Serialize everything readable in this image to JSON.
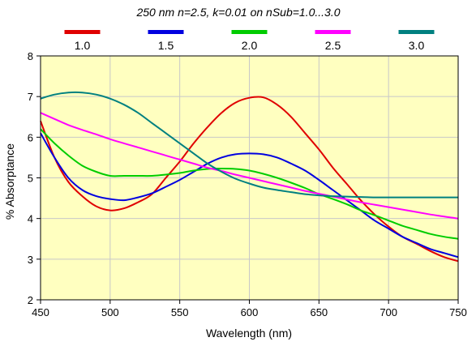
{
  "chart_data": {
    "type": "line",
    "title": "250 nm n=2.5, k=0.01 on nSub=1.0...3.0",
    "xlabel": "Wavelength (nm)",
    "ylabel": "% Absorptance",
    "xlim": [
      450,
      750
    ],
    "ylim": [
      2,
      8
    ],
    "x_ticks": [
      450,
      500,
      550,
      600,
      650,
      700,
      750
    ],
    "y_ticks": [
      2,
      3,
      4,
      5,
      6,
      7,
      8
    ],
    "grid": true,
    "legend_position": "top",
    "plot_background": "#ffffc0",
    "x": [
      450,
      460,
      470,
      480,
      490,
      500,
      510,
      520,
      530,
      540,
      550,
      560,
      570,
      580,
      590,
      600,
      610,
      620,
      630,
      640,
      650,
      660,
      670,
      680,
      690,
      700,
      710,
      720,
      730,
      740,
      750
    ],
    "series": [
      {
        "name": "1.0",
        "color": "#e00000",
        "values": [
          6.4,
          5.5,
          4.9,
          4.55,
          4.3,
          4.2,
          4.25,
          4.4,
          4.6,
          5.0,
          5.4,
          5.85,
          6.25,
          6.6,
          6.85,
          6.97,
          6.98,
          6.8,
          6.5,
          6.1,
          5.7,
          5.25,
          4.85,
          4.45,
          4.1,
          3.8,
          3.55,
          3.38,
          3.2,
          3.05,
          2.95
        ]
      },
      {
        "name": "1.5",
        "color": "#0000e0",
        "values": [
          6.1,
          5.5,
          5.0,
          4.7,
          4.55,
          4.48,
          4.45,
          4.52,
          4.62,
          4.78,
          4.95,
          5.15,
          5.35,
          5.5,
          5.58,
          5.6,
          5.58,
          5.5,
          5.35,
          5.18,
          4.95,
          4.7,
          4.45,
          4.2,
          3.95,
          3.75,
          3.55,
          3.4,
          3.25,
          3.15,
          3.05
        ]
      },
      {
        "name": "2.0",
        "color": "#00cc00",
        "values": [
          6.2,
          5.85,
          5.55,
          5.3,
          5.15,
          5.05,
          5.05,
          5.05,
          5.05,
          5.08,
          5.12,
          5.18,
          5.22,
          5.23,
          5.22,
          5.18,
          5.1,
          5.0,
          4.88,
          4.75,
          4.6,
          4.48,
          4.35,
          4.2,
          4.08,
          3.95,
          3.82,
          3.72,
          3.62,
          3.55,
          3.5
        ]
      },
      {
        "name": "2.5",
        "color": "#ff00ff",
        "values": [
          6.6,
          6.45,
          6.3,
          6.18,
          6.07,
          5.95,
          5.85,
          5.75,
          5.65,
          5.55,
          5.45,
          5.35,
          5.25,
          5.17,
          5.08,
          5.0,
          4.92,
          4.84,
          4.76,
          4.68,
          4.61,
          4.54,
          4.47,
          4.4,
          4.34,
          4.28,
          4.22,
          4.16,
          4.1,
          4.05,
          4.0
        ]
      },
      {
        "name": "3.0",
        "color": "#008080",
        "values": [
          6.95,
          7.05,
          7.1,
          7.1,
          7.05,
          6.95,
          6.8,
          6.6,
          6.35,
          6.1,
          5.85,
          5.6,
          5.35,
          5.15,
          4.98,
          4.86,
          4.76,
          4.7,
          4.65,
          4.6,
          4.57,
          4.55,
          4.54,
          4.53,
          4.52,
          4.52,
          4.52,
          4.52,
          4.52,
          4.52,
          4.52
        ]
      }
    ]
  }
}
